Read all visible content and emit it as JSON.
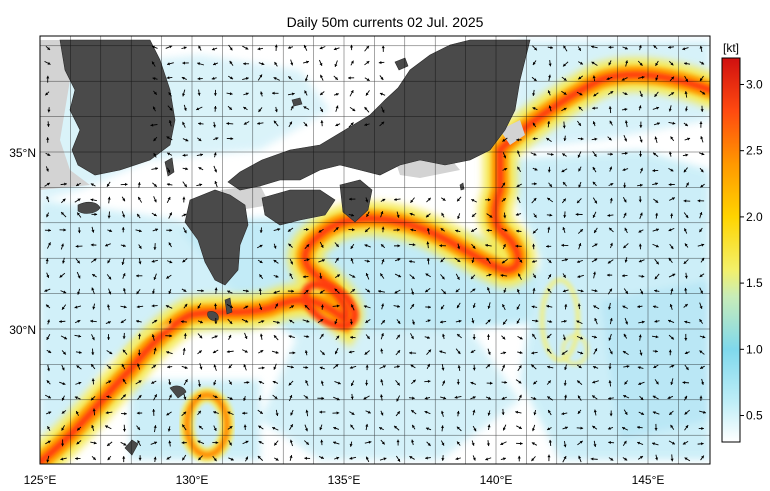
{
  "title": "Daily 50m currents 02 Jul. 2025",
  "map": {
    "lon_range": [
      125,
      147
    ],
    "lat_range": [
      26.5,
      36.5
    ],
    "lon_ticks": [
      "125°E",
      "130°E",
      "135°E",
      "140°E",
      "145°E"
    ],
    "lat_ticks": [
      "35°N",
      "30°N"
    ],
    "colors": {
      "land": "#4a4a4a",
      "shallow_sea": "#cfcfcf",
      "grid": "#000000",
      "arrow": "#000000"
    }
  },
  "colorbar": {
    "unit": "[kt]",
    "ticks": [
      "0.5",
      "1.0",
      "1.5",
      "2.0",
      "2.5",
      "3.0"
    ],
    "min": 0.3,
    "max": 3.2,
    "stops": [
      {
        "value": 0.3,
        "color": "#ffffff"
      },
      {
        "value": 0.6,
        "color": "#bfeef7"
      },
      {
        "value": 1.0,
        "color": "#7fd8ec"
      },
      {
        "value": 1.4,
        "color": "#c8ecb8"
      },
      {
        "value": 1.6,
        "color": "#f3f06a"
      },
      {
        "value": 2.0,
        "color": "#ffd400"
      },
      {
        "value": 2.4,
        "color": "#ff9800"
      },
      {
        "value": 2.8,
        "color": "#ff4a10"
      },
      {
        "value": 3.2,
        "color": "#d01010"
      }
    ]
  }
}
